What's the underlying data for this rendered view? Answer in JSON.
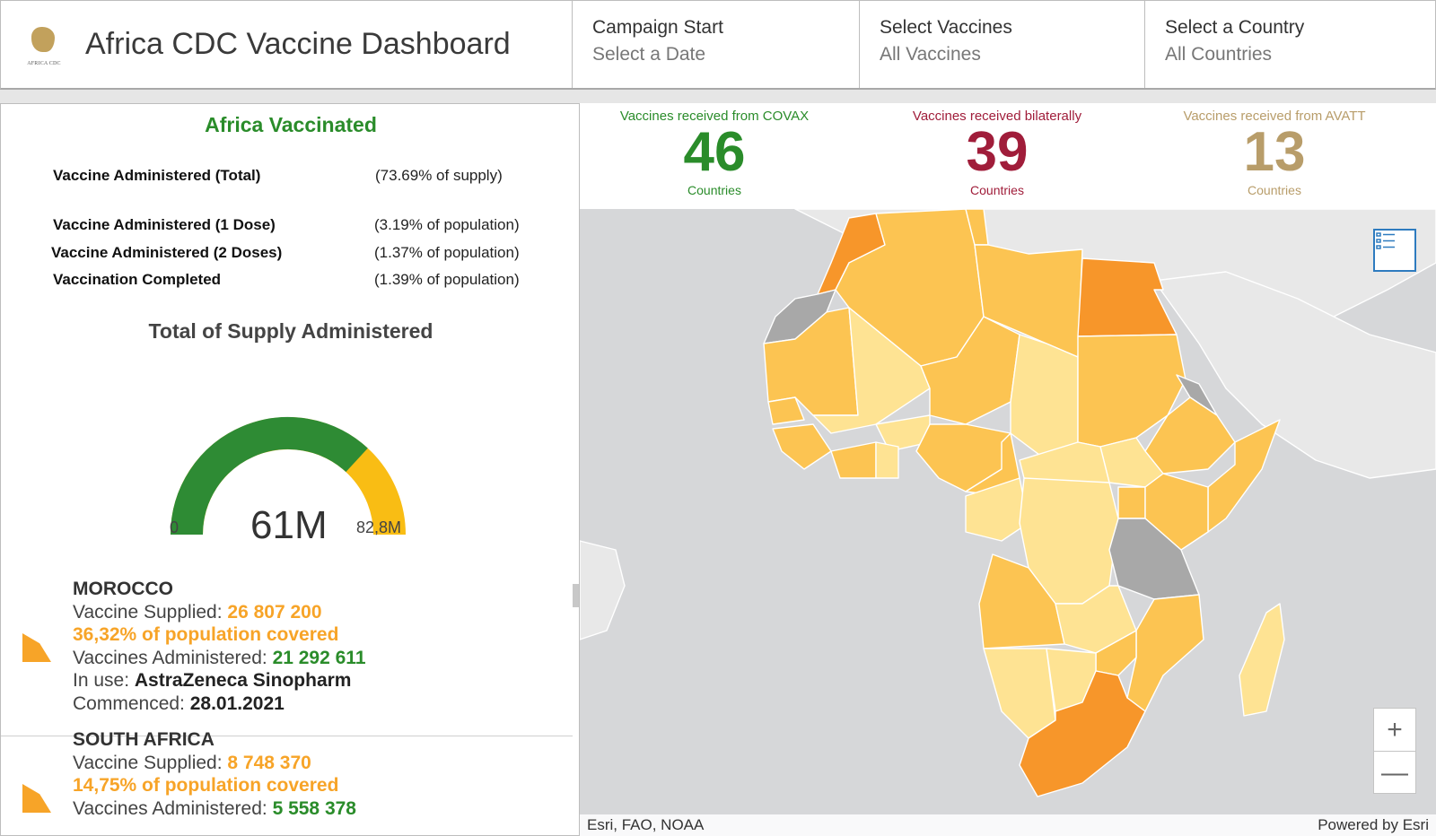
{
  "header": {
    "logo_text": "AFRICA CDC",
    "title": "Africa CDC Vaccine Dashboard",
    "filters": [
      {
        "label": "Campaign Start",
        "value": "Select a Date"
      },
      {
        "label": "Select Vaccines",
        "value": "All Vaccines"
      },
      {
        "label": "Select a Country",
        "value": "All Countries"
      }
    ]
  },
  "left_panel": {
    "title": "Africa Vaccinated",
    "stats": [
      {
        "label": "Vaccine Administered (Total)",
        "value": "(73.69% of supply)"
      },
      {
        "label": "Vaccine Administered (1 Dose)",
        "value": "(3.19% of population)"
      },
      {
        "label": "Vaccine Administered (2 Doses)",
        "value": "(1.37% of population)"
      },
      {
        "label": "Vaccination Completed",
        "value": "(1.39% of population)"
      }
    ],
    "supply_title": "Total of Supply Administered",
    "gauge": {
      "min_label": "0",
      "max_label": "82,8M",
      "value_label": "61M",
      "fraction": 0.737,
      "color_done": "#2e8b34",
      "color_remaining": "#f9bd14"
    },
    "countries": [
      {
        "name": "MOROCCO",
        "supplied_label": "Vaccine Supplied: ",
        "supplied": "26 807 200",
        "coverage": "36,32% of population covered",
        "administered_label": "Vaccines Administered: ",
        "administered": "21 292 611",
        "in_use_label": "In use: ",
        "in_use": "AstraZeneca Sinopharm",
        "commenced_label": "Commenced: ",
        "commenced": "28.01.2021"
      },
      {
        "name": "SOUTH AFRICA",
        "supplied_label": "Vaccine Supplied: ",
        "supplied": "8 748 370",
        "coverage": "14,75% of population covered",
        "administered_label": "Vaccines Administered: ",
        "administered": "5 558 378"
      }
    ]
  },
  "counters": [
    {
      "heading": "Vaccines received from COVAX",
      "number": "46",
      "sub": "Countries",
      "color": "#2a8c2a"
    },
    {
      "heading": "Vaccines received bilaterally",
      "number": "39",
      "sub": "Countries",
      "color": "#a01d3a"
    },
    {
      "heading": "Vaccines received from AVATT",
      "number": "13",
      "sub": "Countries",
      "color": "#b89d6a"
    }
  ],
  "map": {
    "legend_icon": "list-legend-icon",
    "zoom_in": "+",
    "zoom_out": "—",
    "attribution": "Esri, FAO, NOAA",
    "powered_by": "Powered by Esri",
    "colors": {
      "high": "#f7962a",
      "mid": "#fcc452",
      "low": "#fee393",
      "none": "#a8a8a8",
      "land": "#e8e8e8"
    }
  }
}
